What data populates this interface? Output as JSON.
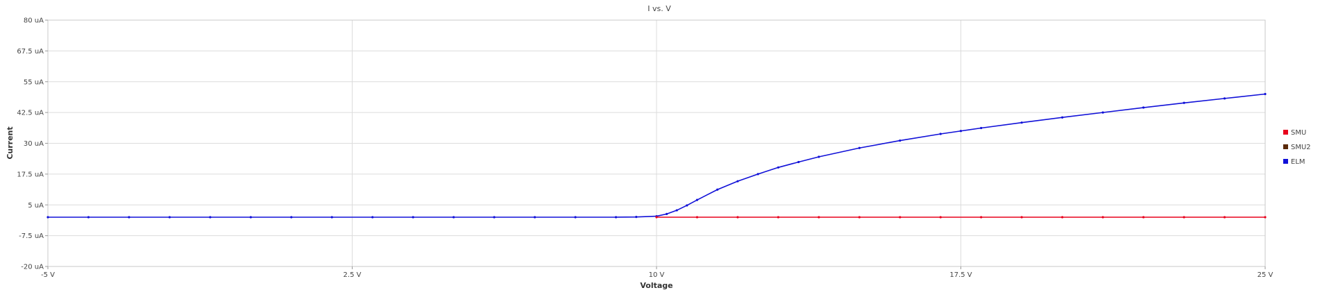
{
  "chart_data": {
    "type": "line",
    "title": "I vs. V",
    "xlabel": "Voltage",
    "ylabel": "Current",
    "xlim": [
      -5,
      25
    ],
    "ylim": [
      -20,
      80
    ],
    "grid": true,
    "legend_position": "right",
    "x_ticks": [
      {
        "value": -5,
        "label": "-5 V"
      },
      {
        "value": 2.5,
        "label": "2.5 V"
      },
      {
        "value": 10,
        "label": "10 V"
      },
      {
        "value": 17.5,
        "label": "17.5 V"
      },
      {
        "value": 25,
        "label": "25 V"
      }
    ],
    "y_ticks": [
      {
        "value": 80,
        "label": "80 uA"
      },
      {
        "value": 67.5,
        "label": "67.5 uA"
      },
      {
        "value": 55,
        "label": "55 uA"
      },
      {
        "value": 42.5,
        "label": "42.5 uA"
      },
      {
        "value": 30,
        "label": "30 uA"
      },
      {
        "value": 17.5,
        "label": "17.5 uA"
      },
      {
        "value": 5,
        "label": "5 uA"
      },
      {
        "value": -7.5,
        "label": "-7.5 uA"
      },
      {
        "value": -20,
        "label": "-20 uA"
      }
    ],
    "series": [
      {
        "name": "SMU",
        "color": "#e8001c",
        "x": [
          10,
          11,
          12,
          13,
          14,
          15,
          16,
          17,
          18,
          19,
          20,
          21,
          22,
          23,
          24,
          25
        ],
        "y": [
          0,
          0,
          0,
          0,
          0,
          0,
          0,
          0,
          0,
          0,
          0,
          0,
          0,
          0,
          0,
          0
        ]
      },
      {
        "name": "SMU2",
        "color": "#5a2a0a",
        "x": [],
        "y": []
      },
      {
        "name": "ELM",
        "color": "#1010d8",
        "x": [
          -5,
          -4,
          -3,
          -2,
          -1,
          0,
          1,
          2,
          3,
          4,
          5,
          6,
          7,
          8,
          9,
          9.5,
          10,
          10.25,
          10.5,
          10.75,
          11,
          11.5,
          12,
          12.5,
          13,
          13.5,
          14,
          15,
          16,
          17,
          17.5,
          18,
          19,
          20,
          21,
          22,
          23,
          24,
          25
        ],
        "y": [
          0,
          0,
          0,
          0,
          0,
          0,
          0,
          0,
          0,
          0,
          0,
          0,
          0,
          0,
          0,
          0.1,
          0.4,
          1.3,
          2.8,
          4.8,
          7,
          11.2,
          14.6,
          17.5,
          20.2,
          22.4,
          24.5,
          28.1,
          31.1,
          33.8,
          35,
          36.2,
          38.4,
          40.5,
          42.5,
          44.5,
          46.4,
          48.2,
          50
        ]
      }
    ]
  }
}
